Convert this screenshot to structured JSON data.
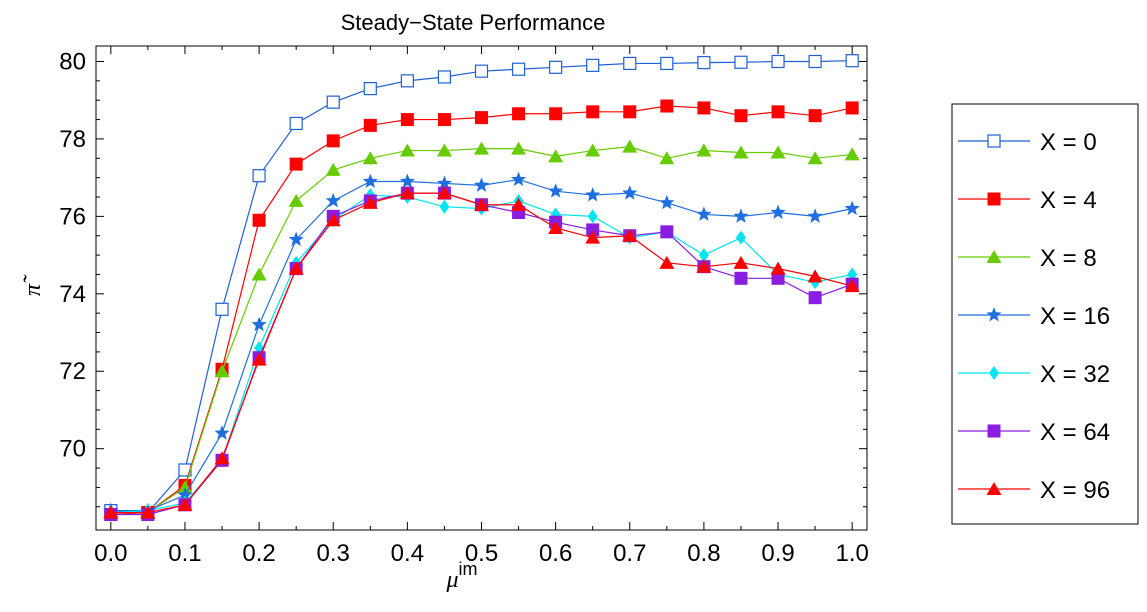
{
  "chart_data": {
    "type": "line",
    "title": "Steady−State Performance",
    "xlabel": "μ",
    "xlabel_sup": "im",
    "ylabel": "π̃",
    "xlim": [
      -0.02,
      1.02
    ],
    "ylim": [
      67.9,
      80.4
    ],
    "xticks": [
      0.0,
      0.1,
      0.2,
      0.3,
      0.4,
      0.5,
      0.6,
      0.7,
      0.8,
      0.9,
      1.0
    ],
    "xtick_labels": [
      "0.0",
      "0.1",
      "0.2",
      "0.3",
      "0.4",
      "0.5",
      "0.6",
      "0.7",
      "0.8",
      "0.9",
      "1.0"
    ],
    "yticks": [
      70,
      72,
      74,
      76,
      78,
      80
    ],
    "ytick_labels": [
      "70",
      "72",
      "74",
      "76",
      "78",
      "80"
    ],
    "grid": false,
    "legend_position": "right",
    "x": [
      0.0,
      0.05,
      0.1,
      0.15,
      0.2,
      0.25,
      0.3,
      0.35,
      0.4,
      0.45,
      0.5,
      0.55,
      0.6,
      0.65,
      0.7,
      0.75,
      0.8,
      0.85,
      0.9,
      0.95,
      1.0
    ],
    "series": [
      {
        "name": "X = 0",
        "color": "#1f5fd6",
        "marker": "square-open",
        "values": [
          68.4,
          68.35,
          69.45,
          73.6,
          77.05,
          78.4,
          78.95,
          79.3,
          79.5,
          79.6,
          79.75,
          79.8,
          79.85,
          79.9,
          79.95,
          79.95,
          79.97,
          79.98,
          80.0,
          80.0,
          80.02
        ]
      },
      {
        "name": "X = 4",
        "color": "#ff0000",
        "marker": "square",
        "values": [
          68.3,
          68.35,
          69.05,
          72.05,
          75.9,
          77.35,
          77.95,
          78.35,
          78.5,
          78.5,
          78.55,
          78.65,
          78.65,
          78.7,
          78.7,
          78.85,
          78.8,
          78.6,
          78.7,
          78.6,
          78.8
        ]
      },
      {
        "name": "X = 8",
        "color": "#66cc00",
        "marker": "triangle",
        "values": [
          68.35,
          68.35,
          69.0,
          72.0,
          74.5,
          76.4,
          77.2,
          77.5,
          77.7,
          77.7,
          77.75,
          77.75,
          77.55,
          77.7,
          77.8,
          77.5,
          77.7,
          77.65,
          77.65,
          77.5,
          77.6
        ]
      },
      {
        "name": "X = 16",
        "color": "#1f6fe0",
        "marker": "star",
        "values": [
          68.4,
          68.4,
          68.8,
          70.4,
          73.2,
          75.4,
          76.4,
          76.9,
          76.9,
          76.85,
          76.8,
          76.95,
          76.65,
          76.55,
          76.6,
          76.35,
          76.05,
          76.0,
          76.1,
          76.0,
          76.2
        ]
      },
      {
        "name": "X = 32",
        "color": "#00e5ee",
        "marker": "diamond",
        "values": [
          68.35,
          68.4,
          68.6,
          69.7,
          72.6,
          74.8,
          75.9,
          76.55,
          76.5,
          76.25,
          76.2,
          76.4,
          76.05,
          76.0,
          75.45,
          75.6,
          75.0,
          75.45,
          74.5,
          74.3,
          74.5
        ]
      },
      {
        "name": "X = 64",
        "color": "#8a1ee0",
        "marker": "square",
        "values": [
          68.3,
          68.3,
          68.55,
          69.7,
          72.35,
          74.65,
          76.0,
          76.4,
          76.6,
          76.6,
          76.3,
          76.1,
          75.85,
          75.65,
          75.5,
          75.6,
          74.7,
          74.4,
          74.4,
          73.9,
          74.25
        ]
      },
      {
        "name": "X = 96",
        "color": "#ff0000",
        "marker": "triangle",
        "values": [
          68.35,
          68.35,
          68.55,
          69.75,
          72.3,
          74.65,
          75.9,
          76.35,
          76.6,
          76.6,
          76.3,
          76.3,
          75.7,
          75.45,
          75.5,
          74.8,
          74.7,
          74.8,
          74.65,
          74.45,
          74.2
        ]
      }
    ]
  }
}
